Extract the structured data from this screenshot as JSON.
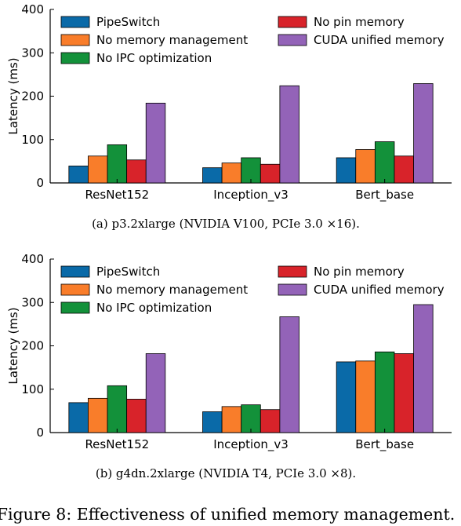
{
  "colors": {
    "PipeSwitch": "#0a6aa8",
    "No memory management": "#f97d2a",
    "No IPC optimization": "#13913a",
    "No pin memory": "#d8232a",
    "CUDA unified memory": "#9363b8"
  },
  "chart_data": [
    {
      "type": "bar",
      "caption": "(a)  p3.2xlarge (NVIDIA V100, PCIe 3.0 ×16).",
      "ylabel": "Latency (ms)",
      "ylim": [
        0,
        400
      ],
      "yticks": [
        0,
        100,
        200,
        300,
        400
      ],
      "categories": [
        "ResNet152",
        "Inception_v3",
        "Bert_base"
      ],
      "legend_position": "top-left, two columns",
      "series": [
        {
          "name": "PipeSwitch",
          "values": [
            39,
            35,
            58
          ]
        },
        {
          "name": "No memory management",
          "values": [
            62,
            46,
            77
          ]
        },
        {
          "name": "No IPC optimization",
          "values": [
            88,
            58,
            95
          ]
        },
        {
          "name": "No pin memory",
          "values": [
            53,
            43,
            62
          ]
        },
        {
          "name": "CUDA unified memory",
          "values": [
            184,
            224,
            229
          ]
        }
      ]
    },
    {
      "type": "bar",
      "caption": "(b)  g4dn.2xlarge (NVIDIA T4, PCIe 3.0 ×8).",
      "ylabel": "Latency (ms)",
      "ylim": [
        0,
        400
      ],
      "yticks": [
        0,
        100,
        200,
        300,
        400
      ],
      "categories": [
        "ResNet152",
        "Inception_v3",
        "Bert_base"
      ],
      "legend_position": "top-left, two columns",
      "series": [
        {
          "name": "PipeSwitch",
          "values": [
            69,
            48,
            163
          ]
        },
        {
          "name": "No memory management",
          "values": [
            79,
            60,
            165
          ]
        },
        {
          "name": "No IPC optimization",
          "values": [
            108,
            64,
            186
          ]
        },
        {
          "name": "No pin memory",
          "values": [
            77,
            53,
            182
          ]
        },
        {
          "name": "CUDA unified memory",
          "values": [
            182,
            267,
            295
          ]
        }
      ]
    }
  ],
  "figure_caption": "Figure 8: Effectiveness of unified memory management."
}
